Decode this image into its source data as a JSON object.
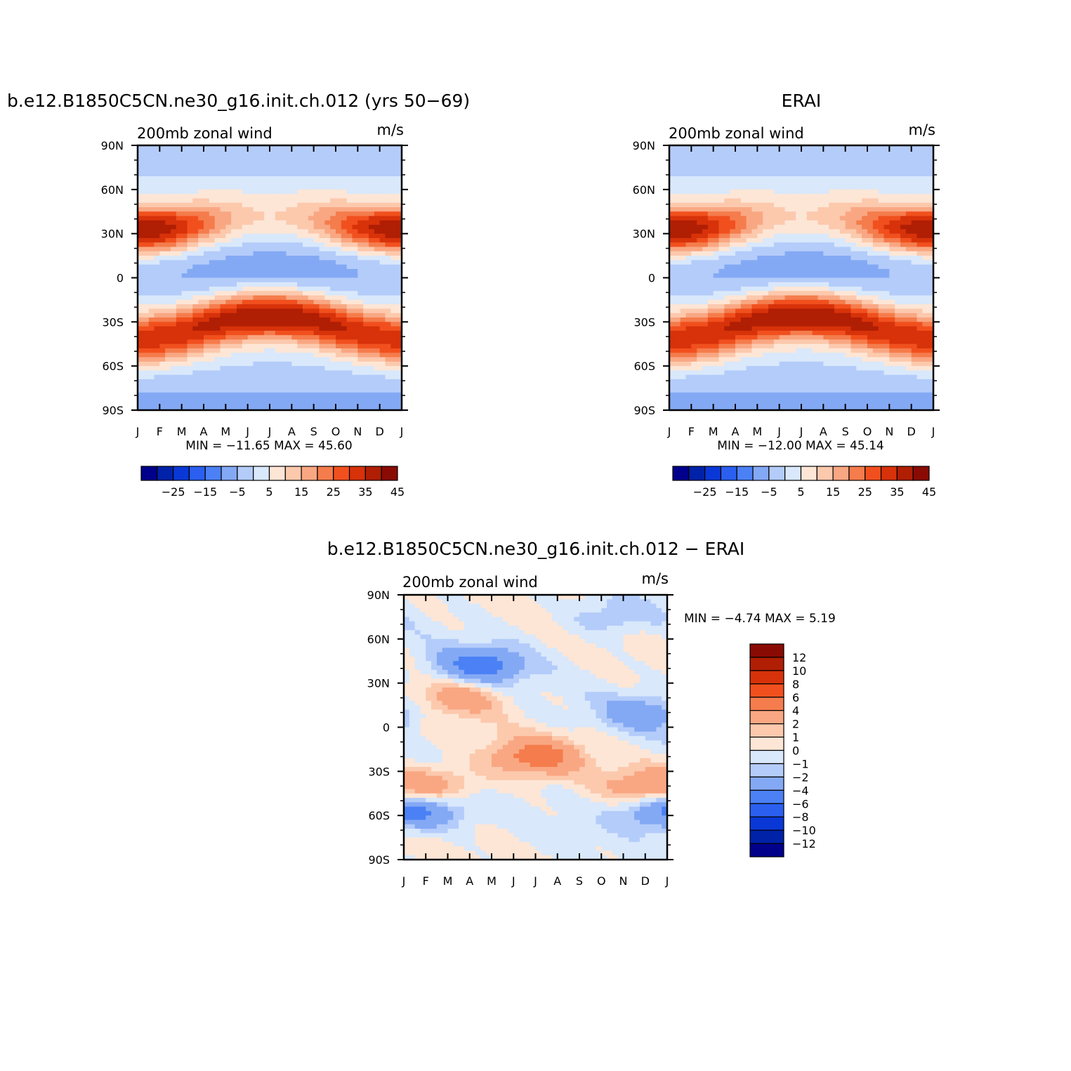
{
  "chart_data": [
    {
      "type": "heatmap",
      "title": "b.e12.B1850C5CN.ne30_g16.init.ch.012 (yrs 50−69)",
      "subtitle_left": "200mb zonal wind",
      "subtitle_right": "m/s",
      "x_ticks": [
        "J",
        "F",
        "M",
        "A",
        "M",
        "J",
        "J",
        "A",
        "S",
        "O",
        "N",
        "D",
        "J"
      ],
      "y_ticks": [
        "90N",
        "60N",
        "30N",
        "0",
        "30S",
        "60S",
        "90S"
      ],
      "stats": "MIN = −11.65  MAX =   45.60",
      "levels": [
        -30,
        -25,
        -20,
        -15,
        -10,
        -5,
        0,
        5,
        10,
        15,
        20,
        25,
        30,
        35,
        40,
        45
      ],
      "colorbar_labels": [
        "−25",
        "−15",
        "−5",
        "5",
        "15",
        "25",
        "35",
        "45"
      ],
      "features": [
        {
          "lat": 30,
          "month": 0.7,
          "peak": 45
        },
        {
          "lat": 30,
          "month": 12.0,
          "peak": 44
        },
        {
          "lat": -29,
          "month": 6.0,
          "peak": 45
        },
        {
          "lat": -45,
          "month": 1.0,
          "peak": 36
        },
        {
          "lat": 5,
          "month": 6.5,
          "peak": -11
        },
        {
          "lat": 40,
          "month": 7.0,
          "peak": 11
        }
      ]
    },
    {
      "type": "heatmap",
      "title": "ERAI",
      "subtitle_left": "200mb zonal wind",
      "subtitle_right": "m/s",
      "x_ticks": [
        "J",
        "F",
        "M",
        "A",
        "M",
        "J",
        "J",
        "A",
        "S",
        "O",
        "N",
        "D",
        "J"
      ],
      "y_ticks": [
        "90N",
        "60N",
        "30N",
        "0",
        "30S",
        "60S",
        "90S"
      ],
      "stats": "MIN = −12.00  MAX =   45.14",
      "levels": [
        -30,
        -25,
        -20,
        -15,
        -10,
        -5,
        0,
        5,
        10,
        15,
        20,
        25,
        30,
        35,
        40,
        45
      ],
      "colorbar_labels": [
        "−25",
        "−15",
        "−5",
        "5",
        "15",
        "25",
        "35",
        "45"
      ],
      "features": [
        {
          "lat": 30,
          "month": 0.7,
          "peak": 45
        },
        {
          "lat": 30,
          "month": 12.0,
          "peak": 44
        },
        {
          "lat": -29,
          "month": 6.0,
          "peak": 44
        },
        {
          "lat": -45,
          "month": 0.8,
          "peak": 37
        },
        {
          "lat": 5,
          "month": 6.5,
          "peak": -12
        },
        {
          "lat": 40,
          "month": 7.0,
          "peak": 11
        }
      ]
    },
    {
      "type": "heatmap",
      "title": "b.e12.B1850C5CN.ne30_g16.init.ch.012 − ERAI",
      "subtitle_left": "200mb zonal wind",
      "subtitle_right": "m/s",
      "x_ticks": [
        "J",
        "F",
        "M",
        "A",
        "M",
        "J",
        "J",
        "A",
        "S",
        "O",
        "N",
        "D",
        "J"
      ],
      "y_ticks": [
        "90N",
        "60N",
        "30N",
        "0",
        "30S",
        "60S",
        "90S"
      ],
      "stats": "MIN =   −4.74  MAX =    5.19",
      "levels": [
        -12,
        -10,
        -8,
        -6,
        -4,
        -2,
        -1,
        0,
        1,
        2,
        4,
        6,
        8,
        10,
        12
      ],
      "colorbar_labels": [
        "12",
        "10",
        "8",
        "6",
        "4",
        "2",
        "1",
        "0",
        "−1",
        "−2",
        "−4",
        "−6",
        "−8",
        "−10",
        "−12"
      ],
      "features": [
        {
          "lat": 42,
          "month": 3.5,
          "peak": -5
        },
        {
          "lat": 20,
          "month": 2.5,
          "peak": 3
        },
        {
          "lat": -20,
          "month": 6.0,
          "peak": 5
        },
        {
          "lat": -40,
          "month": 1.5,
          "peak": 3
        },
        {
          "lat": -40,
          "month": 11.0,
          "peak": 3
        },
        {
          "lat": -57,
          "month": 1.0,
          "peak": -3
        },
        {
          "lat": -57,
          "month": 11.5,
          "peak": -3
        },
        {
          "lat": 10,
          "month": 11.0,
          "peak": -3
        },
        {
          "lat": 75,
          "month": 9.5,
          "peak": -2
        }
      ]
    }
  ],
  "colors": {
    "palette": [
      "#00008b",
      "#0022a8",
      "#0a38d6",
      "#2a5fef",
      "#4b81f5",
      "#84a9f4",
      "#b4ccfa",
      "#d9e8fb",
      "#fde6d6",
      "#fcc9ad",
      "#f9a783",
      "#f57c4c",
      "#f1501e",
      "#d7320a",
      "#b01e04",
      "#8a0b03"
    ],
    "diff_palette": [
      "#00008b",
      "#0022a8",
      "#0a38d6",
      "#2a5fef",
      "#4b81f5",
      "#84a9f4",
      "#b4ccfa",
      "#d9e8fb",
      "#fde6d6",
      "#fcc9ad",
      "#f9a783",
      "#f57c4c",
      "#f1501e",
      "#d7320a",
      "#b01e04",
      "#8a0b03"
    ]
  }
}
